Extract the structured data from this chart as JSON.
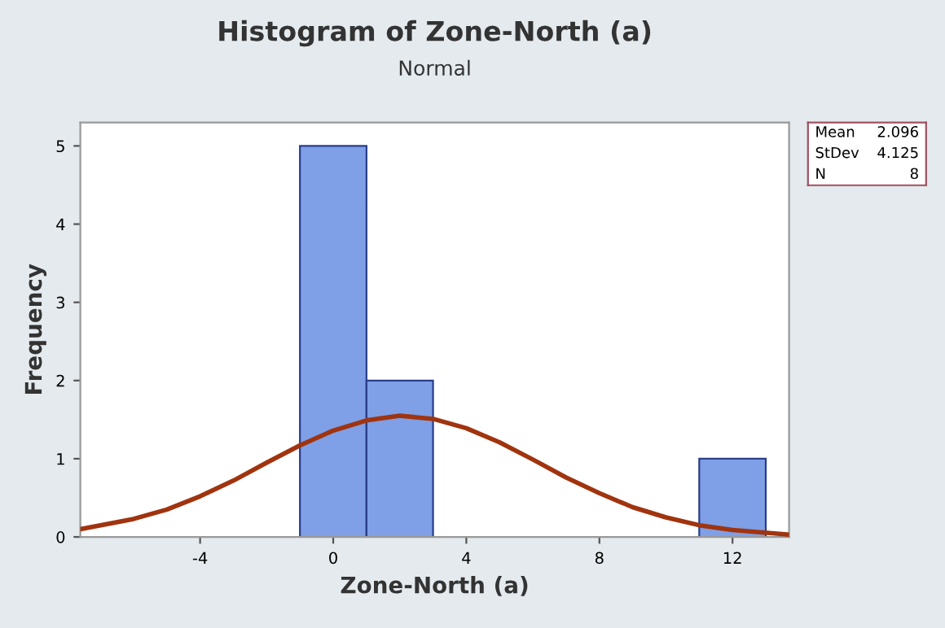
{
  "chart_data": {
    "type": "histogram",
    "title": "Histogram of Zone-North (a)",
    "subtitle": "Normal",
    "xlabel": "Zone-North (a)",
    "ylabel": "Frequency",
    "bins": [
      -1,
      1,
      3,
      5,
      7,
      9,
      11,
      13
    ],
    "values": [
      5,
      2,
      0,
      0,
      0,
      0,
      1
    ],
    "color": "#7f9fe6",
    "series": [
      {
        "type": "line",
        "color": "#a0340f",
        "x": [
          -7.6,
          -6,
          -5,
          -4,
          -3,
          -2,
          -1,
          0,
          1,
          2,
          3,
          4,
          5,
          6,
          7,
          8,
          9,
          10,
          11,
          12,
          13.7
        ],
        "values": [
          0.1,
          0.23,
          0.35,
          0.52,
          0.72,
          0.95,
          1.17,
          1.36,
          1.49,
          1.55,
          1.51,
          1.39,
          1.21,
          0.99,
          0.76,
          0.56,
          0.38,
          0.25,
          0.15,
          0.09,
          0.03
        ]
      }
    ],
    "xlim": [
      -7.6,
      13.7
    ],
    "xticks": [
      -4,
      0,
      4,
      8,
      12
    ],
    "ylim": [
      0,
      5.3
    ],
    "yticks": [
      0,
      1,
      2,
      3,
      4,
      5
    ],
    "grid": false,
    "annotations": [
      "Mean 2.096",
      "StDev 4.125",
      "N 8"
    ]
  }
}
